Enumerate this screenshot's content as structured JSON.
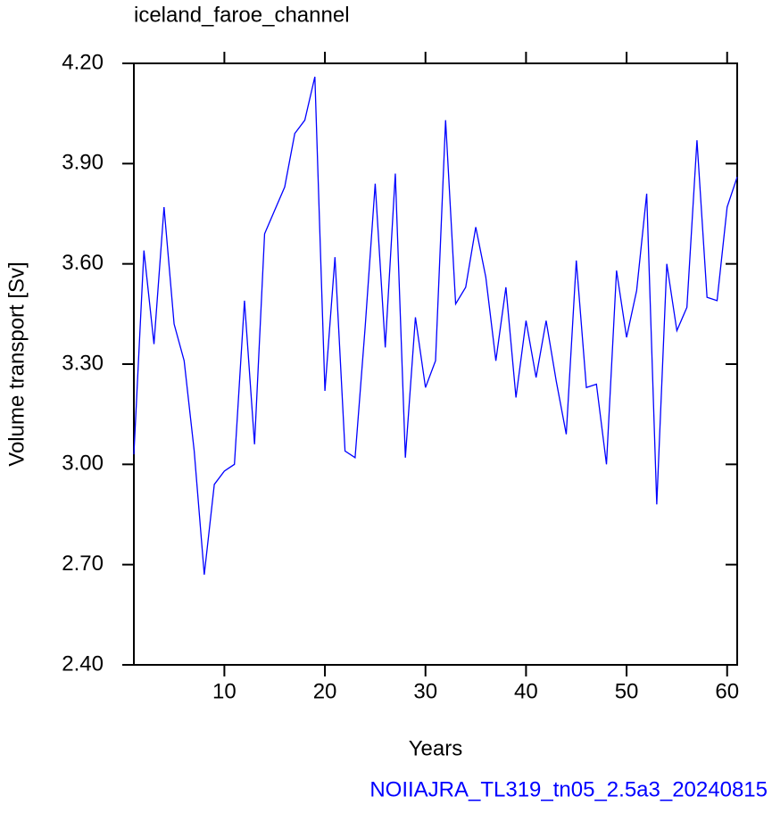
{
  "chart_data": {
    "type": "line",
    "title": "iceland_faroe_channel",
    "x_label": "Years",
    "y_label": "Volume transport [Sv]",
    "footer": "NOIIAJRA_TL319_tn05_2.5a3_20240815",
    "x": [
      1,
      2,
      3,
      4,
      5,
      6,
      7,
      8,
      9,
      10,
      11,
      12,
      13,
      14,
      15,
      16,
      17,
      18,
      19,
      20,
      21,
      22,
      23,
      24,
      25,
      26,
      27,
      28,
      29,
      30,
      31,
      32,
      33,
      34,
      35,
      36,
      37,
      38,
      39,
      40,
      41,
      42,
      43,
      44,
      45,
      46,
      47,
      48,
      49,
      50,
      51,
      52,
      53,
      54,
      55,
      56,
      57,
      58,
      59,
      60,
      61
    ],
    "series": [
      {
        "name": "volume transport",
        "color": "#0000ff",
        "values": [
          3.03,
          3.64,
          3.36,
          3.77,
          3.42,
          3.31,
          3.04,
          2.67,
          2.94,
          2.98,
          3.0,
          3.49,
          3.06,
          3.69,
          3.76,
          3.83,
          3.99,
          4.03,
          4.16,
          3.22,
          3.62,
          3.04,
          3.02,
          3.41,
          3.84,
          3.35,
          3.87,
          3.02,
          3.44,
          3.23,
          3.31,
          4.03,
          3.48,
          3.53,
          3.71,
          3.56,
          3.31,
          3.53,
          3.2,
          3.43,
          3.26,
          3.43,
          3.25,
          3.09,
          3.61,
          3.23,
          3.24,
          3.0,
          3.58,
          3.38,
          3.52,
          3.81,
          2.88,
          3.6,
          3.4,
          3.47,
          3.97,
          3.5,
          3.49,
          3.77,
          3.86
        ]
      }
    ],
    "xlim": [
      1,
      61
    ],
    "xticks": [
      10,
      20,
      30,
      40,
      50,
      60
    ],
    "ylim": [
      2.4,
      4.2
    ],
    "yticks": [
      {
        "value": 2.4,
        "label": "2.40"
      },
      {
        "value": 2.7,
        "label": "2.70"
      },
      {
        "value": 3.0,
        "label": "3.00"
      },
      {
        "value": 3.3,
        "label": "3.30"
      },
      {
        "value": 3.6,
        "label": "3.60"
      },
      {
        "value": 3.9,
        "label": "3.90"
      },
      {
        "value": 4.2,
        "label": "4.20"
      }
    ],
    "footer_color": "#0000ff"
  }
}
